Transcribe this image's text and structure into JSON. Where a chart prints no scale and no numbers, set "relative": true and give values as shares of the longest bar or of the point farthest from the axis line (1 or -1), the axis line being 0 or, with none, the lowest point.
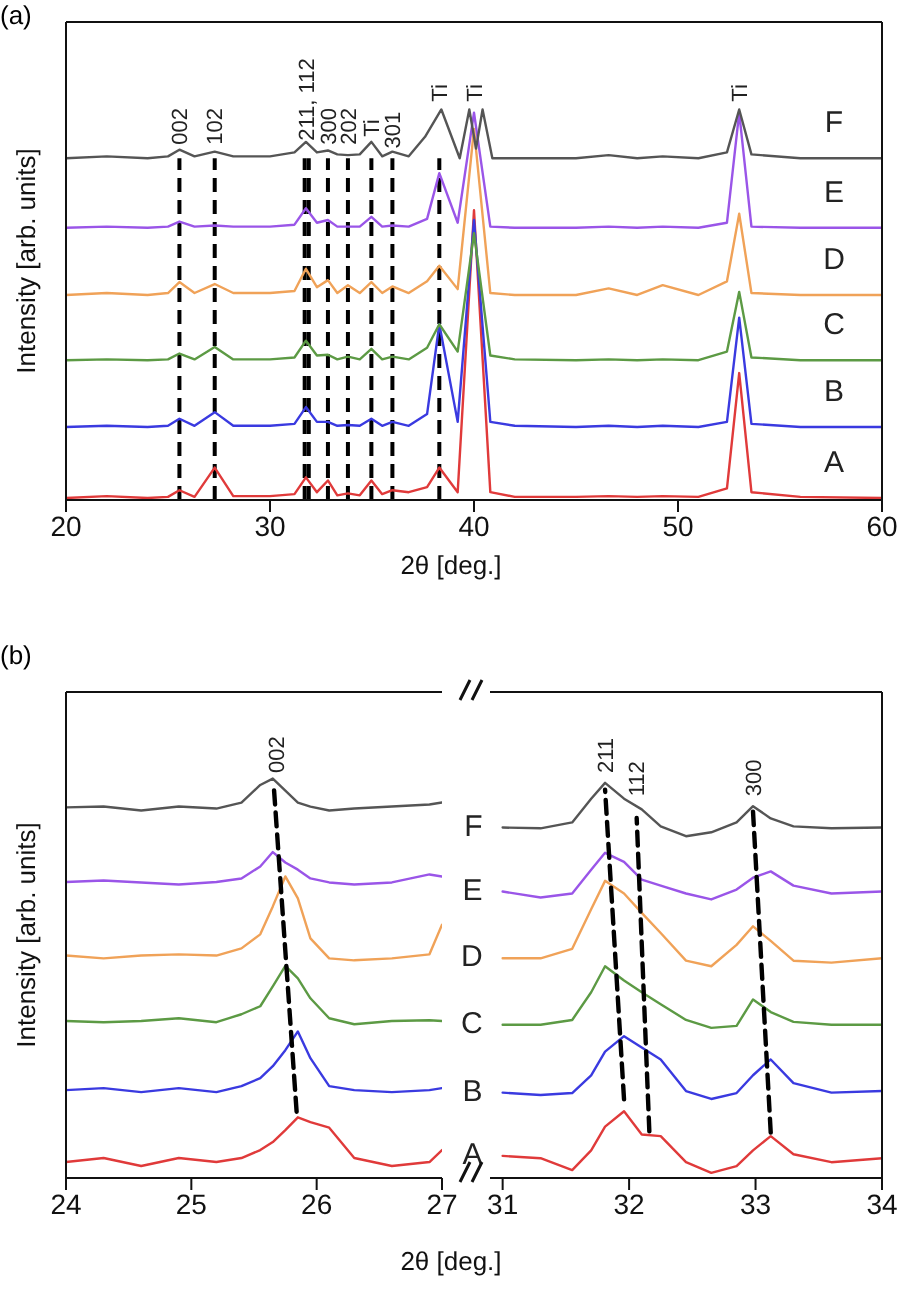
{
  "chart_data": [
    {
      "type": "line",
      "title": "(a)",
      "xlabel": "2θ [deg.]",
      "ylabel": "Intensity [arb. units]",
      "relative": true,
      "marker": "none",
      "xlim": [
        20,
        60
      ],
      "xticks": [
        20,
        30,
        40,
        50,
        60
      ],
      "x": [
        20,
        22,
        24,
        25,
        25.56,
        26.3,
        27.29,
        28.2,
        30,
        31.2,
        31.76,
        32.3,
        32.84,
        33.3,
        33.82,
        34.4,
        34.97,
        35.5,
        36.0,
        36.8,
        37.7,
        38.3,
        39.2,
        40.0,
        40.8,
        42,
        45,
        46.6,
        48,
        49.25,
        51,
        52.4,
        53.0,
        53.6,
        56,
        60
      ],
      "series": [
        {
          "name": "A",
          "color": "#e03a3a",
          "values": [
            0.005,
            0.01,
            0.005,
            0.008,
            0.025,
            0.008,
            0.083,
            0.01,
            0.01,
            0.015,
            0.058,
            0.02,
            0.05,
            0.012,
            0.017,
            0.012,
            0.05,
            0.015,
            0.025,
            0.02,
            0.033,
            0.083,
            0.02,
            0.742,
            0.02,
            0.008,
            0.008,
            0.01,
            0.008,
            0.01,
            0.008,
            0.03,
            0.325,
            0.02,
            0.008,
            0.005
          ]
        },
        {
          "name": "B",
          "color": "#3a3ae0",
          "values": [
            0.187,
            0.19,
            0.187,
            0.19,
            0.208,
            0.19,
            0.225,
            0.19,
            0.19,
            0.195,
            0.238,
            0.2,
            0.2,
            0.19,
            0.192,
            0.19,
            0.208,
            0.19,
            0.2,
            0.19,
            0.22,
            0.45,
            0.2,
            0.717,
            0.2,
            0.19,
            0.187,
            0.19,
            0.187,
            0.19,
            0.187,
            0.2,
            0.467,
            0.195,
            0.187,
            0.187
          ]
        },
        {
          "name": "C",
          "color": "#5c9a44",
          "values": [
            0.358,
            0.36,
            0.358,
            0.36,
            0.375,
            0.36,
            0.392,
            0.36,
            0.36,
            0.365,
            0.408,
            0.37,
            0.372,
            0.36,
            0.367,
            0.36,
            0.387,
            0.36,
            0.367,
            0.36,
            0.39,
            0.45,
            0.38,
            0.683,
            0.37,
            0.36,
            0.358,
            0.36,
            0.358,
            0.36,
            0.358,
            0.38,
            0.533,
            0.365,
            0.358,
            0.358
          ]
        },
        {
          "name": "D",
          "color": "#f0a258",
          "values": [
            0.525,
            0.53,
            0.525,
            0.53,
            0.558,
            0.53,
            0.553,
            0.53,
            0.53,
            0.535,
            0.592,
            0.545,
            0.563,
            0.53,
            0.55,
            0.53,
            0.558,
            0.53,
            0.547,
            0.53,
            0.56,
            0.6,
            0.54,
            0.95,
            0.53,
            0.525,
            0.525,
            0.542,
            0.525,
            0.55,
            0.525,
            0.56,
            0.733,
            0.53,
            0.525,
            0.525
          ]
        },
        {
          "name": "E",
          "color": "#9a55e8",
          "values": [
            0.697,
            0.7,
            0.697,
            0.7,
            0.713,
            0.7,
            0.703,
            0.7,
            0.7,
            0.705,
            0.747,
            0.71,
            0.717,
            0.7,
            0.7,
            0.7,
            0.725,
            0.7,
            0.703,
            0.7,
            0.72,
            0.837,
            0.71,
            0.992,
            0.7,
            0.697,
            0.697,
            0.7,
            0.697,
            0.7,
            0.697,
            0.71,
            0.992,
            0.7,
            0.697,
            0.697
          ]
        },
        {
          "name": "F",
          "color": "#555555",
          "x": [
            20,
            22,
            24,
            25,
            25.56,
            26.3,
            27.29,
            28.2,
            30,
            31.2,
            31.76,
            32.3,
            32.84,
            33.3,
            33.82,
            34.4,
            34.97,
            35.5,
            36.0,
            36.8,
            37.6,
            38.4,
            39.3,
            39.77,
            40.1,
            40.42,
            40.9,
            42,
            45,
            46.6,
            48,
            49.25,
            51,
            52.4,
            53.0,
            53.6,
            56,
            60
          ],
          "values": [
            0.875,
            0.88,
            0.875,
            0.88,
            0.897,
            0.88,
            0.892,
            0.88,
            0.88,
            0.89,
            0.917,
            0.89,
            0.895,
            0.885,
            0.883,
            0.885,
            0.917,
            0.88,
            0.892,
            0.88,
            0.93,
            1,
            0.875,
            1,
            0.9,
            1,
            0.875,
            0.875,
            0.875,
            0.883,
            0.875,
            0.88,
            0.875,
            0.89,
            1,
            0.885,
            0.875,
            0.875
          ]
        }
      ],
      "ref_lines": [
        {
          "axis": "x",
          "value": 25.56,
          "color": "#000000",
          "line_style": "dashed"
        },
        {
          "axis": "x",
          "value": 27.29,
          "color": "#000000",
          "line_style": "dashed"
        },
        {
          "axis": "x",
          "value": 31.7,
          "color": "#000000",
          "line_style": "dashed"
        },
        {
          "axis": "x",
          "value": 31.9,
          "color": "#000000",
          "line_style": "dashed"
        },
        {
          "axis": "x",
          "value": 32.84,
          "color": "#000000",
          "line_style": "dashed"
        },
        {
          "axis": "x",
          "value": 33.82,
          "color": "#000000",
          "line_style": "dashed"
        },
        {
          "axis": "x",
          "value": 34.97,
          "color": "#000000",
          "line_style": "dashed"
        },
        {
          "axis": "x",
          "value": 36.0,
          "color": "#000000",
          "line_style": "dashed"
        },
        {
          "axis": "x",
          "value": 38.3,
          "color": "#000000",
          "line_style": "dashed"
        }
      ],
      "annotations": [
        {
          "text": "002",
          "x": 25.56,
          "y": 0.91
        },
        {
          "text": "102",
          "x": 27.29,
          "y": 0.91
        },
        {
          "text": "211, 112",
          "x": 31.76,
          "y": 0.92
        },
        {
          "text": "300",
          "x": 32.84,
          "y": 0.91
        },
        {
          "text": "202",
          "x": 33.82,
          "y": 0.91
        },
        {
          "text": "Ti",
          "x": 34.97,
          "y": 0.93
        },
        {
          "text": "301",
          "x": 36.0,
          "y": 0.9
        },
        {
          "text": "Ti",
          "x": 38.3,
          "y": 1.02
        },
        {
          "text": "Ti",
          "x": 40.0,
          "y": 1.02
        },
        {
          "text": "Ti",
          "x": 53.0,
          "y": 1.02
        }
      ]
    },
    {
      "type": "line",
      "title": "(b)",
      "ylabel": "Intensity [arb. units]",
      "relative": true,
      "marker": "none",
      "xlim": [
        24,
        27
      ],
      "xticks": [
        24,
        25,
        26,
        27
      ],
      "x": [
        24,
        24.3,
        24.6,
        24.9,
        25.2,
        25.4,
        25.55,
        25.65,
        25.75,
        25.85,
        25.95,
        26.1,
        26.3,
        26.6,
        26.9,
        27
      ],
      "series": [
        {
          "color": "#e03a3a",
          "values": [
            0.04,
            0.05,
            0.03,
            0.05,
            0.04,
            0.05,
            0.07,
            0.09,
            0.12,
            0.152,
            0.14,
            0.126,
            0.05,
            0.03,
            0.04,
            0.07
          ]
        },
        {
          "color": "#3a3ae0",
          "values": [
            0.22,
            0.225,
            0.215,
            0.225,
            0.215,
            0.23,
            0.25,
            0.28,
            0.32,
            0.367,
            0.3,
            0.23,
            0.22,
            0.215,
            0.22,
            0.225
          ]
        },
        {
          "color": "#5c9a44",
          "values": [
            0.393,
            0.39,
            0.393,
            0.4,
            0.39,
            0.41,
            0.43,
            0.48,
            0.531,
            0.5,
            0.45,
            0.4,
            0.385,
            0.393,
            0.395,
            0.393
          ]
        },
        {
          "color": "#f0a258",
          "values": [
            0.557,
            0.55,
            0.557,
            0.56,
            0.557,
            0.575,
            0.61,
            0.68,
            0.755,
            0.7,
            0.6,
            0.55,
            0.545,
            0.55,
            0.56,
            0.634
          ]
        },
        {
          "color": "#9a55e8",
          "values": [
            0.741,
            0.745,
            0.74,
            0.735,
            0.741,
            0.75,
            0.78,
            0.816,
            0.79,
            0.772,
            0.75,
            0.74,
            0.735,
            0.74,
            0.76,
            0.755
          ]
        },
        {
          "color": "#555555",
          "values": [
            0.928,
            0.93,
            0.92,
            0.93,
            0.925,
            0.94,
            0.984,
            1,
            0.97,
            0.94,
            0.93,
            0.92,
            0.925,
            0.93,
            0.935,
            0.94
          ]
        },
        {
          "type": "line",
          "color": "#000000",
          "line_style": "dashed",
          "x": [
            25.84,
            25.66
          ],
          "values": [
            0.166,
            0.971
          ]
        }
      ],
      "annotations": [
        {
          "text": "002",
          "x": 25.68,
          "y": 1.014
        }
      ]
    },
    {
      "type": "line",
      "xlabel": "2θ [deg.]",
      "relative": true,
      "marker": "none",
      "xlim": [
        30.9,
        34
      ],
      "xticks": [
        31,
        32,
        33,
        34
      ],
      "x": [
        31.0,
        31.3,
        31.55,
        31.7,
        31.81,
        31.96,
        32.1,
        32.25,
        32.45,
        32.65,
        32.85,
        32.98,
        33.12,
        33.3,
        33.6,
        34.0
      ],
      "series": [
        {
          "name": "A",
          "color": "#e03a3a",
          "values": [
            0.056,
            0.05,
            0.02,
            0.07,
            0.13,
            0.169,
            0.11,
            0.106,
            0.04,
            0.013,
            0.03,
            0.07,
            0.106,
            0.06,
            0.04,
            0.05
          ]
        },
        {
          "name": "B",
          "color": "#3a3ae0",
          "values": [
            0.216,
            0.21,
            0.215,
            0.26,
            0.32,
            0.359,
            0.33,
            0.3,
            0.22,
            0.2,
            0.215,
            0.26,
            0.3,
            0.24,
            0.216,
            0.22
          ]
        },
        {
          "name": "C",
          "color": "#5c9a44",
          "values": [
            0.388,
            0.388,
            0.4,
            0.47,
            0.536,
            0.5,
            0.47,
            0.44,
            0.4,
            0.38,
            0.385,
            0.452,
            0.42,
            0.395,
            0.388,
            0.388
          ]
        },
        {
          "name": "D",
          "color": "#f0a258",
          "values": [
            0.556,
            0.556,
            0.58,
            0.68,
            0.752,
            0.72,
            0.671,
            0.62,
            0.55,
            0.536,
            0.59,
            0.637,
            0.6,
            0.55,
            0.545,
            0.556
          ]
        },
        {
          "name": "E",
          "color": "#9a55e8",
          "values": [
            0.725,
            0.71,
            0.72,
            0.78,
            0.823,
            0.8,
            0.755,
            0.74,
            0.72,
            0.705,
            0.73,
            0.76,
            0.776,
            0.74,
            0.72,
            0.725
          ]
        },
        {
          "name": "F",
          "color": "#555555",
          "values": [
            0.887,
            0.885,
            0.9,
            0.96,
            1,
            0.96,
            0.933,
            0.89,
            0.865,
            0.875,
            0.9,
            0.941,
            0.91,
            0.89,
            0.885,
            0.887
          ]
        },
        {
          "type": "line",
          "color": "#000000",
          "line_style": "dashed",
          "x": [
            31.96,
            31.81
          ],
          "values": [
            0.199,
            0.983
          ]
        },
        {
          "type": "line",
          "color": "#000000",
          "line_style": "dashed",
          "x": [
            32.16,
            32.06
          ],
          "values": [
            0.118,
            0.911
          ]
        },
        {
          "type": "line",
          "color": "#000000",
          "line_style": "dashed",
          "x": [
            33.12,
            32.98
          ],
          "values": [
            0.115,
            0.927
          ]
        }
      ],
      "annotations": [
        {
          "text": "211",
          "x": 31.81,
          "y": 1.025
        },
        {
          "text": "112",
          "x": 32.06,
          "y": 0.966
        },
        {
          "text": "300",
          "x": 32.98,
          "y": 0.966
        }
      ]
    }
  ]
}
